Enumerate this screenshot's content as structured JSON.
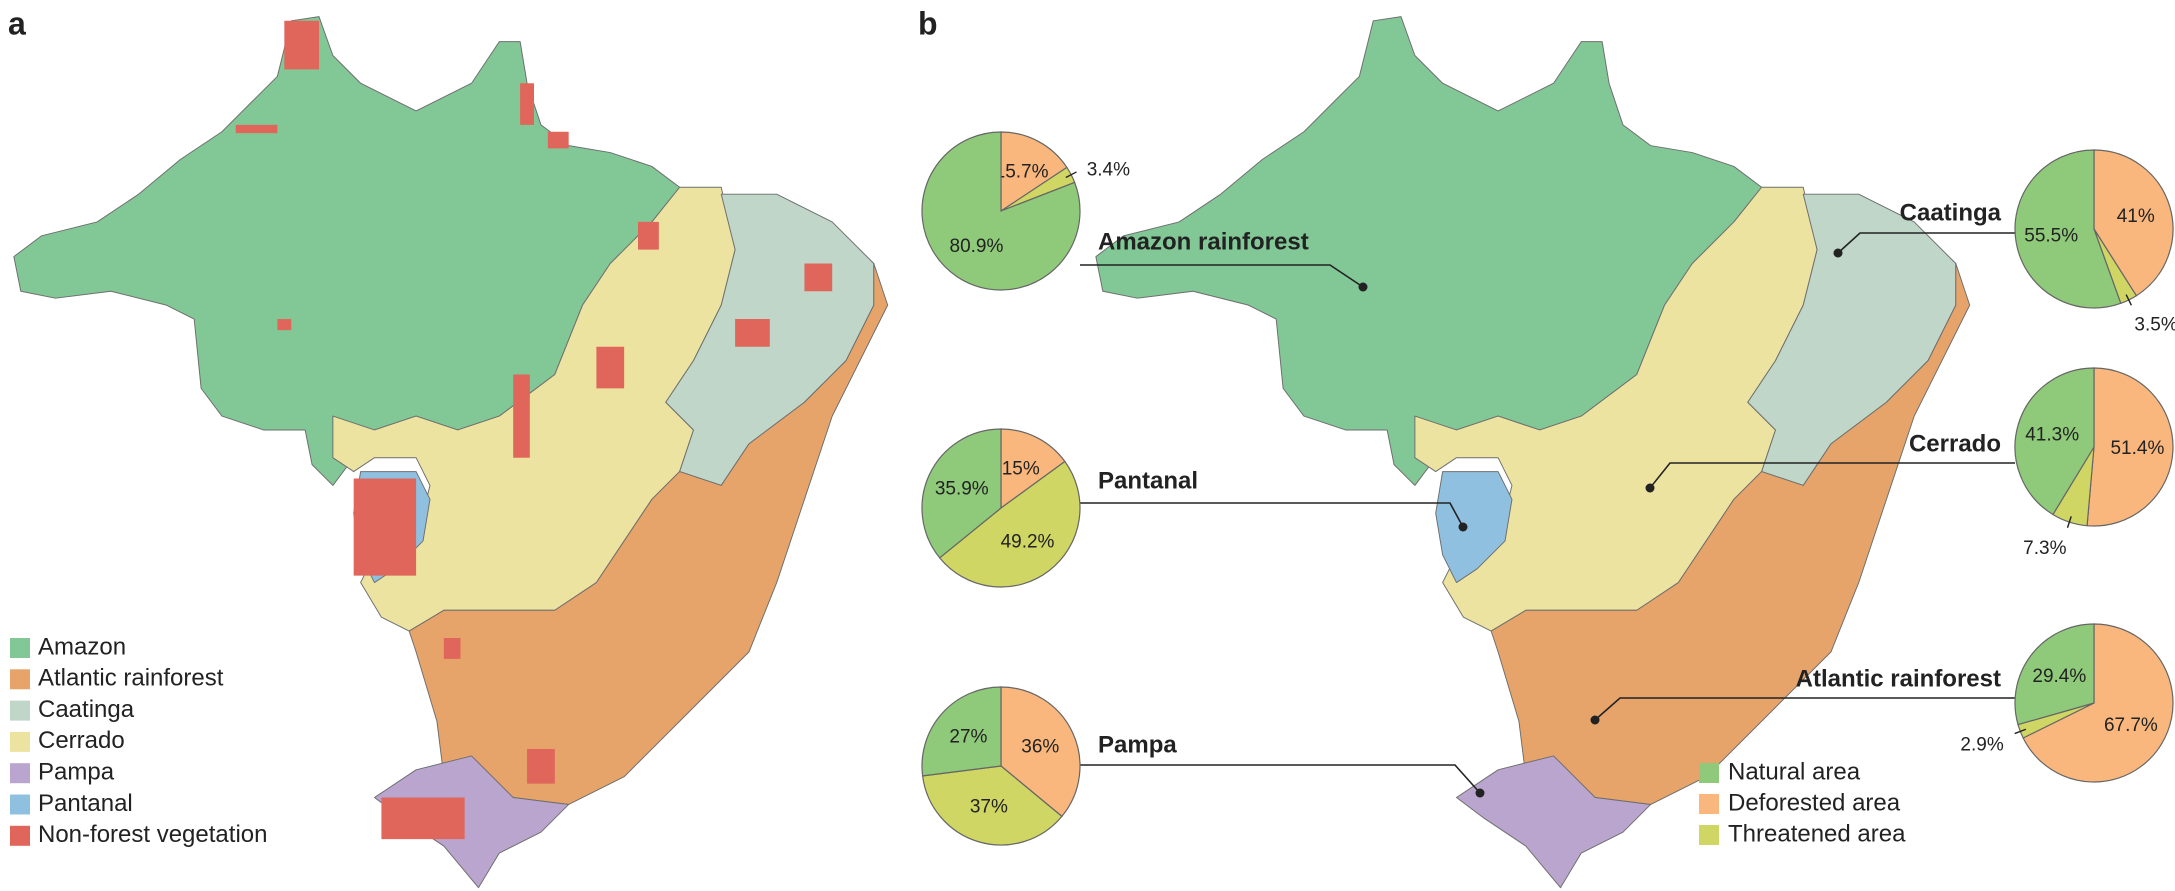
{
  "panels": [
    {
      "label": "a"
    },
    {
      "label": "b"
    }
  ],
  "map_legend": {
    "entries": [
      {
        "name": "Amazon",
        "color": "#82c796"
      },
      {
        "name": "Atlantic rainforest",
        "color": "#e6a46b"
      },
      {
        "name": "Caatinga",
        "color": "#bfd6c9"
      },
      {
        "name": "Cerrado",
        "color": "#ede3a0"
      },
      {
        "name": "Pampa",
        "color": "#baa5cf"
      },
      {
        "name": "Pantanal",
        "color": "#90c0e0"
      },
      {
        "name": "Non-forest vegetation",
        "color": "#e0655a"
      }
    ]
  },
  "pie_legend": {
    "categories": [
      "Natural area",
      "Deforested area",
      "Threatened area"
    ],
    "colors": [
      "#8fc97a",
      "#f9b77e",
      "#cfd663"
    ]
  },
  "chart_data": [
    {
      "type": "pie",
      "title": "Amazon rainforest",
      "values": [
        80.9,
        15.7,
        3.4
      ],
      "value_labels": [
        "80.9%",
        "15.7%",
        "3.4%"
      ]
    },
    {
      "type": "pie",
      "title": "Pantanal",
      "values": [
        35.9,
        15,
        49.2
      ],
      "value_labels": [
        "35.9%",
        "15%",
        "49.2%"
      ]
    },
    {
      "type": "pie",
      "title": "Pampa",
      "values": [
        27,
        36,
        37
      ],
      "value_labels": [
        "27%",
        "36%",
        "37%"
      ]
    },
    {
      "type": "pie",
      "title": "Caatinga",
      "values": [
        55.5,
        41,
        3.5
      ],
      "value_labels": [
        "55.5%",
        "41%",
        "3.5%"
      ]
    },
    {
      "type": "pie",
      "title": "Cerrado",
      "values": [
        41.3,
        51.4,
        7.3
      ],
      "value_labels": [
        "41.3%",
        "51.4%",
        "7.3%"
      ]
    },
    {
      "type": "pie",
      "title": "Atlantic rainforest",
      "values": [
        29.4,
        67.7,
        2.9
      ],
      "value_labels": [
        "29.4%",
        "67.7%",
        "2.9%"
      ]
    }
  ]
}
